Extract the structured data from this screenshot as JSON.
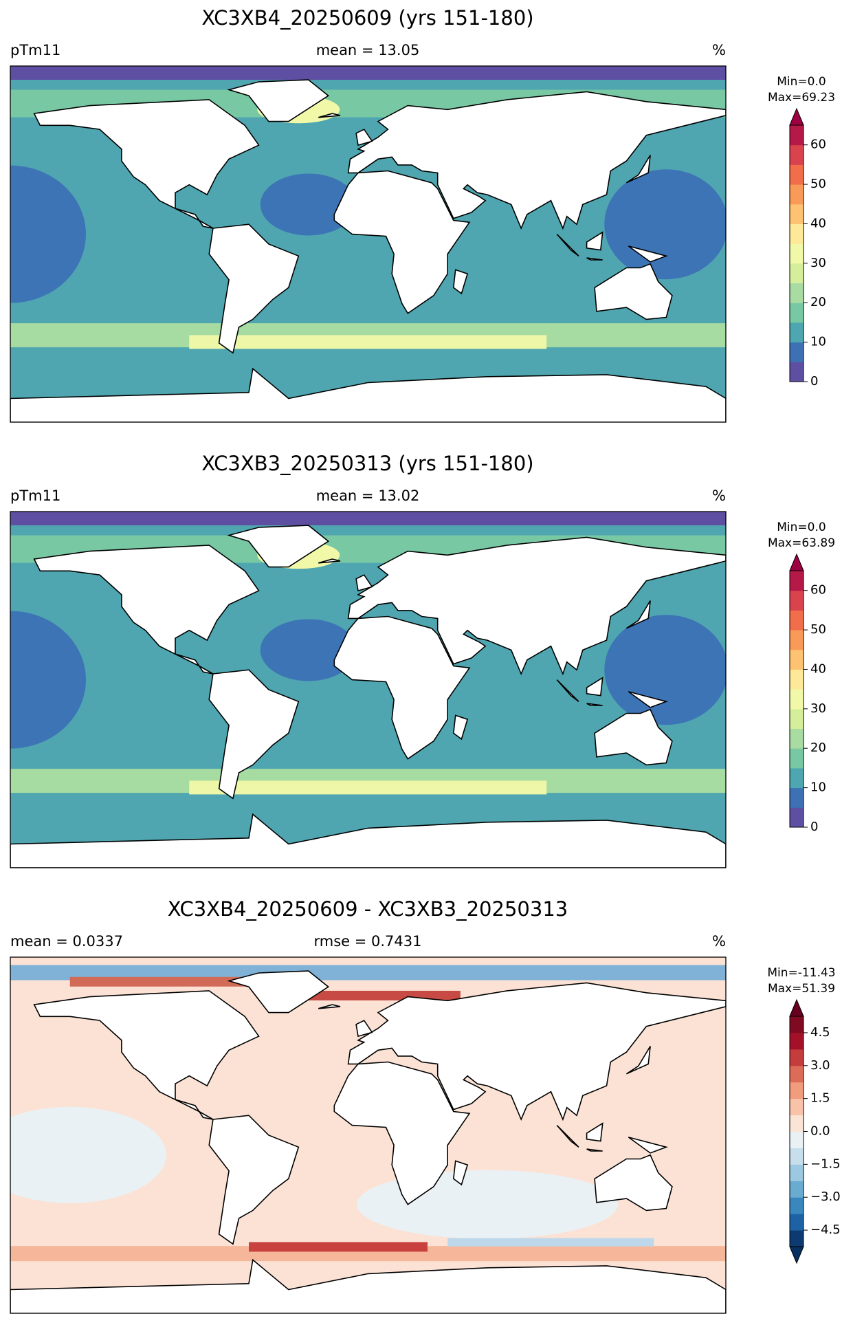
{
  "chart_data": [
    {
      "type": "map",
      "title": "XC3XB4_20250609 (yrs 151-180)",
      "left_label": "pTm11",
      "center_label": "mean = 13.05",
      "units": "%",
      "minmax": [
        "Min=0.0",
        "Max=69.23"
      ],
      "colorbar": {
        "lim": [
          0,
          65
        ],
        "ticks": [
          0,
          10,
          20,
          30,
          40,
          50,
          60
        ],
        "extend": "max",
        "over_color": "#9e0142",
        "colors": [
          "#5e4fa2",
          "#3d71b4",
          "#4da6b0",
          "#79c8a4",
          "#a8dca2",
          "#d4ee9b",
          "#f1f9a9",
          "#fee999",
          "#fdc372",
          "#fa9a58",
          "#f26d4a",
          "#d9434e",
          "#b41947"
        ]
      },
      "style": "field"
    },
    {
      "type": "map",
      "title": "XC3XB3_20250313 (yrs 151-180)",
      "left_label": "pTm11",
      "center_label": "mean = 13.02",
      "units": "%",
      "minmax": [
        "Min=0.0",
        "Max=63.89"
      ],
      "colorbar": {
        "lim": [
          0,
          65
        ],
        "ticks": [
          0,
          10,
          20,
          30,
          40,
          50,
          60
        ],
        "extend": "max",
        "over_color": "#9e0142",
        "colors": [
          "#5e4fa2",
          "#3d71b4",
          "#4da6b0",
          "#79c8a4",
          "#a8dca2",
          "#d4ee9b",
          "#f1f9a9",
          "#fee999",
          "#fdc372",
          "#fa9a58",
          "#f26d4a",
          "#d9434e",
          "#b41947"
        ]
      },
      "style": "field"
    },
    {
      "type": "map",
      "title": "XC3XB4_20250609 - XC3XB3_20250313",
      "left_label": "mean = 0.0337",
      "center_label": "rmse = 0.7431",
      "units": "%",
      "minmax": [
        "Min=-11.43",
        "Max=51.39"
      ],
      "colorbar": {
        "lim": [
          -5.25,
          5.25
        ],
        "ticks": [
          {
            "value": -4.5,
            "label": "−4.5"
          },
          {
            "value": -3,
            "label": "−3.0"
          },
          {
            "value": -1.5,
            "label": "−1.5"
          },
          {
            "value": 0,
            "label": "0.0"
          },
          1.5,
          {
            "value": 3,
            "label": "3.0"
          },
          4.5
        ],
        "extend": "both",
        "over_color": "#67001f",
        "under_color": "#053061",
        "colors": [
          "#0d3a70",
          "#1e62a6",
          "#3a87bd",
          "#6aabd0",
          "#9cc9e1",
          "#c7dfec",
          "#e9f1f5",
          "#fbe4d6",
          "#f8c3a9",
          "#f19c7c",
          "#dc6c58",
          "#c43c3c",
          "#a31129",
          "#800a22"
        ]
      },
      "style": "diff"
    }
  ]
}
